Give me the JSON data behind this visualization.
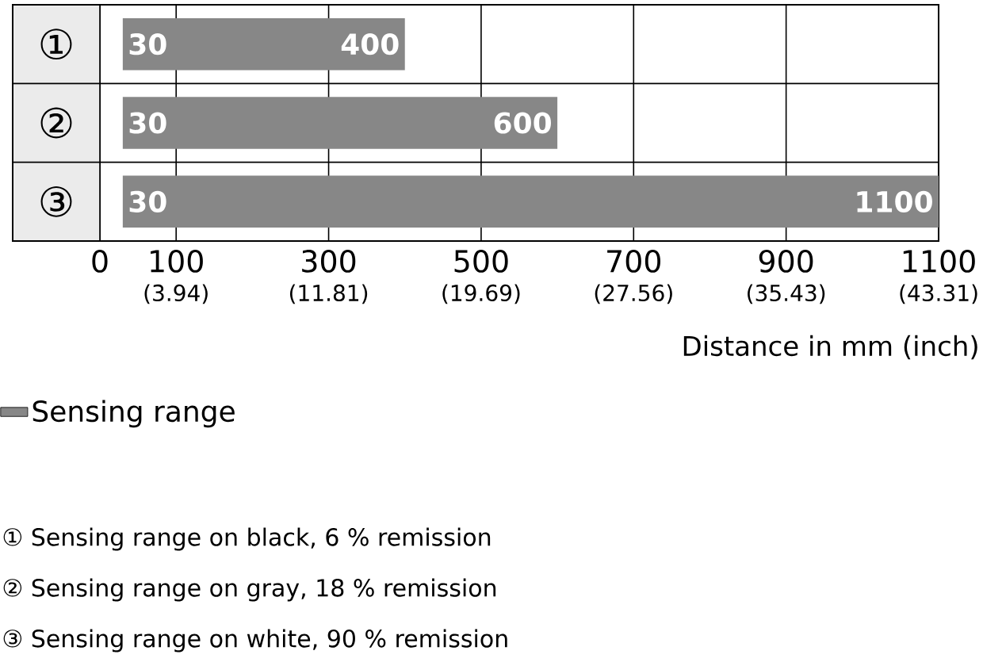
{
  "chart_data": {
    "type": "bar",
    "orientation": "horizontal",
    "categories": [
      "①",
      "②",
      "③"
    ],
    "series": [
      {
        "name": "Sensing range",
        "color": "#878787",
        "base": [
          30,
          30,
          30
        ],
        "values": [
          370,
          570,
          1070
        ]
      }
    ],
    "xlim": [
      0,
      1100
    ],
    "xticks": [
      0,
      100,
      300,
      500,
      700,
      900,
      1100
    ],
    "xlabel": "Distance in mm (inch)",
    "grid": "x",
    "legend": "bottom",
    "annotations": [
      {
        "text": "30",
        "x": 30,
        "y": "①"
      },
      {
        "text": "400",
        "x": 400,
        "y": "①"
      },
      {
        "text": "30",
        "x": 30,
        "y": "②"
      },
      {
        "text": "600",
        "x": 600,
        "y": "②"
      },
      {
        "text": "30",
        "x": 30,
        "y": "③"
      },
      {
        "text": "1100",
        "x": 1100,
        "y": "③"
      },
      "(3.94)",
      "(11.81)",
      "(19.69)",
      "(27.56)",
      "(35.43)",
      "(43.31)",
      "① Sensing range on black, 6 % remission",
      "② Sensing range on gray, 18 % remission",
      "③ Sensing range on white, 90 % remission"
    ]
  }
}
